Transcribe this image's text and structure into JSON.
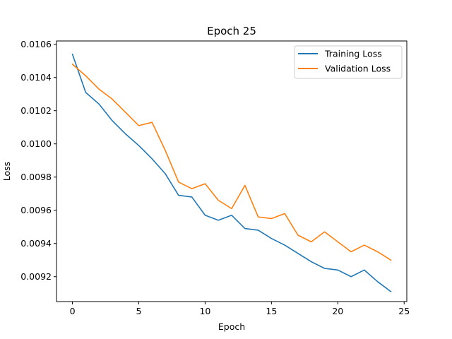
{
  "chart_data": {
    "type": "line",
    "title": "Epoch 25",
    "xlabel": "Epoch",
    "ylabel": "Loss",
    "xlim": [
      -1.2,
      25.2
    ],
    "ylim": [
      0.00905,
      0.01062
    ],
    "xticks": [
      0,
      5,
      10,
      15,
      20,
      25
    ],
    "yticks": [
      0.0092,
      0.0094,
      0.0096,
      0.0098,
      0.01,
      0.0102,
      0.0104,
      0.0106
    ],
    "ytick_labels": [
      "0.0092",
      "0.0094",
      "0.0096",
      "0.0098",
      "0.0100",
      "0.0102",
      "0.0104",
      "0.0106"
    ],
    "legend_position": "top-right",
    "grid": false,
    "x": [
      0,
      1,
      2,
      3,
      4,
      5,
      6,
      7,
      8,
      9,
      10,
      11,
      12,
      13,
      14,
      15,
      16,
      17,
      18,
      19,
      20,
      21,
      22,
      23,
      24
    ],
    "series": [
      {
        "name": "Training Loss",
        "color": "#1f77b4",
        "values": [
          0.01054,
          0.01031,
          0.01024,
          0.01014,
          0.01006,
          0.00999,
          0.00991,
          0.00982,
          0.00969,
          0.00968,
          0.00957,
          0.00954,
          0.00957,
          0.00949,
          0.00948,
          0.00943,
          0.00939,
          0.00934,
          0.00929,
          0.00925,
          0.00924,
          0.0092,
          0.00924,
          0.00917,
          0.00911
        ]
      },
      {
        "name": "Validation Loss",
        "color": "#ff7f0e",
        "values": [
          0.01048,
          0.01041,
          0.01033,
          0.01027,
          0.01019,
          0.01011,
          0.01013,
          0.00996,
          0.00977,
          0.00973,
          0.00976,
          0.00966,
          0.00961,
          0.00975,
          0.00956,
          0.00955,
          0.00958,
          0.00945,
          0.00941,
          0.00947,
          0.00941,
          0.00935,
          0.00939,
          0.00935,
          0.0093
        ]
      }
    ]
  }
}
